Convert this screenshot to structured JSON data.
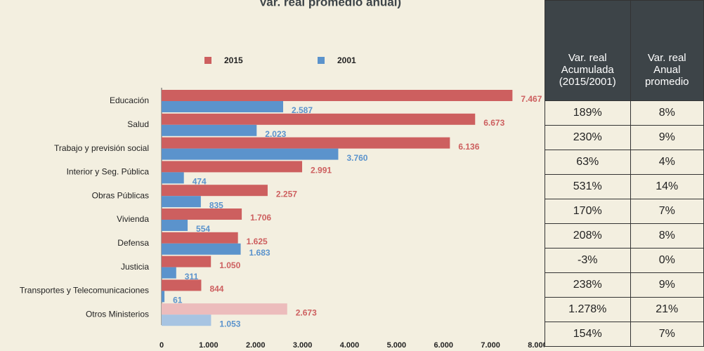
{
  "chart_data": {
    "type": "bar",
    "orientation": "horizontal",
    "title": "Var. real promedio anual)",
    "categories": [
      "Educación",
      "Salud",
      "Trabajo y previsión social",
      "Interior y Seg. Pública",
      "Obras Públicas",
      "Vivienda",
      "Defensa",
      "Justicia",
      "Transportes y Telecomunicaciones",
      "Otros Ministerios"
    ],
    "series": [
      {
        "name": "2015",
        "color": "#cd5f5f",
        "colors": [
          "#cd5f5f",
          "#cd5f5f",
          "#cd5f5f",
          "#cd5f5f",
          "#cd5f5f",
          "#cd5f5f",
          "#cd5f5f",
          "#cd5f5f",
          "#cd5f5f",
          "#ecbcbc"
        ],
        "values": [
          7467,
          6673,
          6136,
          2991,
          2257,
          1706,
          1625,
          1050,
          844,
          2673
        ],
        "value_labels": [
          "7.467",
          "6.673",
          "6.136",
          "2.991",
          "2.257",
          "1.706",
          "1.625",
          "1.050",
          "844",
          "2.673"
        ]
      },
      {
        "name": "2001",
        "color": "#5b93cc",
        "colors": [
          "#5b93cc",
          "#5b93cc",
          "#5b93cc",
          "#5b93cc",
          "#5b93cc",
          "#5b93cc",
          "#5b93cc",
          "#5b93cc",
          "#5b93cc",
          "#a7c4e2"
        ],
        "values": [
          2587,
          2023,
          3760,
          474,
          835,
          554,
          1683,
          311,
          61,
          1053
        ],
        "value_labels": [
          "2.587",
          "2.023",
          "3.760",
          "474",
          "835",
          "554",
          "1.683",
          "311",
          "61",
          "1.053"
        ]
      }
    ],
    "xlim": [
      0,
      8000
    ],
    "xticks": [
      0,
      {
        "value": 1000,
        "label": "1.000"
      },
      {
        "value": 2000,
        "label": "2.000"
      },
      {
        "value": 3000,
        "label": "3.000"
      },
      {
        "value": 4000,
        "label": "4.000"
      },
      {
        "value": 5000,
        "label": "5.000"
      },
      {
        "value": 6000,
        "label": "6.000"
      },
      {
        "value": 7000,
        "label": "7.000"
      },
      {
        "value": 8000,
        "label": "8.000"
      }
    ],
    "grid": false
  },
  "table": {
    "header": [
      "Var. real Acumulada (2015/2001)",
      "Var. real Anual promedio"
    ],
    "rows": [
      [
        "189%",
        "8%"
      ],
      [
        "230%",
        "9%"
      ],
      [
        "63%",
        "4%"
      ],
      [
        "531%",
        "14%"
      ],
      [
        "170%",
        "7%"
      ],
      [
        "208%",
        "8%"
      ],
      [
        "-3%",
        "0%"
      ],
      [
        "238%",
        "9%"
      ],
      [
        "1.278%",
        "21%"
      ],
      [
        "154%",
        "7%"
      ]
    ]
  }
}
